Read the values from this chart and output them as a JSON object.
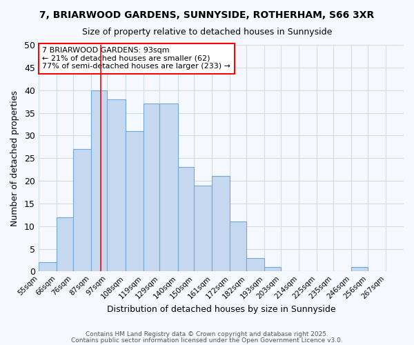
{
  "title1": "7, BRIARWOOD GARDENS, SUNNYSIDE, ROTHERHAM, S66 3XR",
  "title2": "Size of property relative to detached houses in Sunnyside",
  "xlabel": "Distribution of detached houses by size in Sunnyside",
  "ylabel": "Number of detached properties",
  "bin_labels": [
    "55sqm",
    "66sqm",
    "76sqm",
    "87sqm",
    "97sqm",
    "108sqm",
    "119sqm",
    "129sqm",
    "140sqm",
    "150sqm",
    "161sqm",
    "172sqm",
    "182sqm",
    "193sqm",
    "203sqm",
    "214sqm",
    "225sqm",
    "235sqm",
    "246sqm",
    "256sqm",
    "267sqm"
  ],
  "bin_edges": [
    55,
    66,
    76,
    87,
    97,
    108,
    119,
    129,
    140,
    150,
    161,
    172,
    182,
    193,
    203,
    214,
    225,
    235,
    246,
    256,
    267
  ],
  "counts": [
    2,
    12,
    27,
    40,
    38,
    31,
    37,
    37,
    23,
    19,
    21,
    11,
    3,
    1,
    0,
    0,
    0,
    0,
    1,
    0
  ],
  "bar_facecolor": "#c5d8f0",
  "bar_edgecolor": "#6fa8d8",
  "grid_color": "#d0dce8",
  "background_color": "#f5f9ff",
  "annotation_box_text": "7 BRIARWOOD GARDENS: 93sqm\n← 21% of detached houses are smaller (62)\n77% of semi-detached houses are larger (233) →",
  "property_line_x": 93,
  "footer1": "Contains HM Land Registry data © Crown copyright and database right 2025.",
  "footer2": "Contains public sector information licensed under the Open Government Licence v3.0.",
  "ylim": [
    0,
    50
  ],
  "yticks": [
    0,
    5,
    10,
    15,
    20,
    25,
    30,
    35,
    40,
    45,
    50
  ]
}
